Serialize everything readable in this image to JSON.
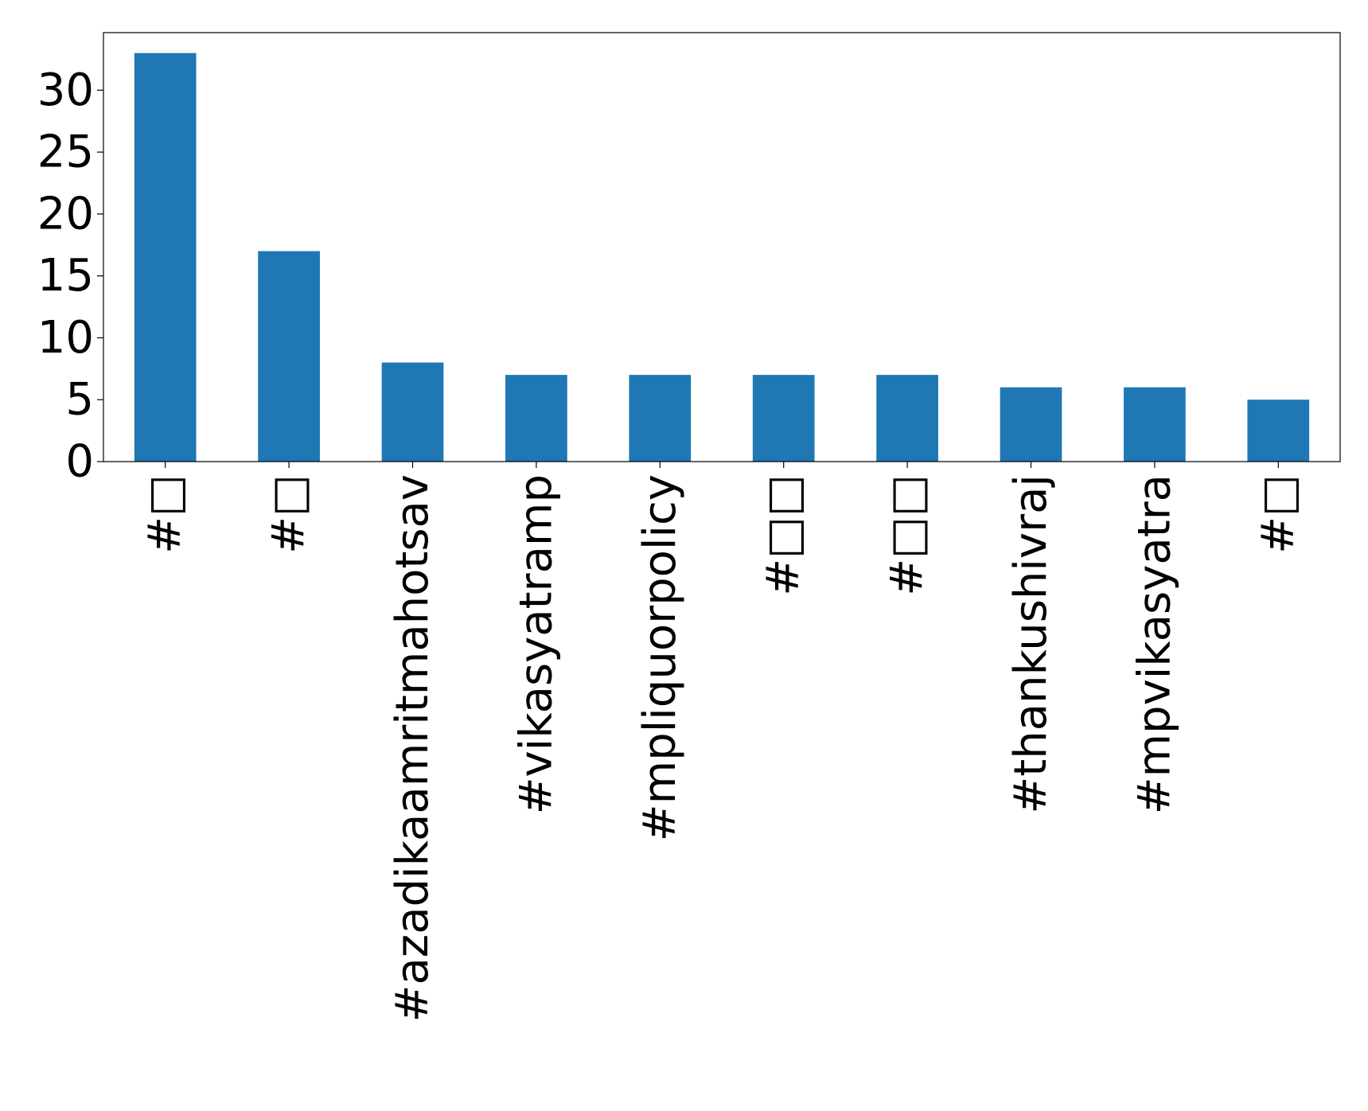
{
  "chart_data": {
    "type": "bar",
    "categories": [
      "#□",
      "#□",
      "#azadikaamritmahotsav",
      "#vikasyatramp",
      "#mpliquorpolicy",
      "#□□",
      "#□□",
      "#thankushivraj",
      "#mpvikasyatra",
      "#□"
    ],
    "values": [
      33,
      17,
      8,
      7,
      7,
      7,
      7,
      6,
      6,
      5
    ],
    "yticks": [
      0,
      5,
      10,
      15,
      20,
      25,
      30
    ],
    "ylim": [
      0,
      34.65
    ],
    "bar_color": "#1f77b4",
    "grid": false,
    "legend": "none"
  }
}
